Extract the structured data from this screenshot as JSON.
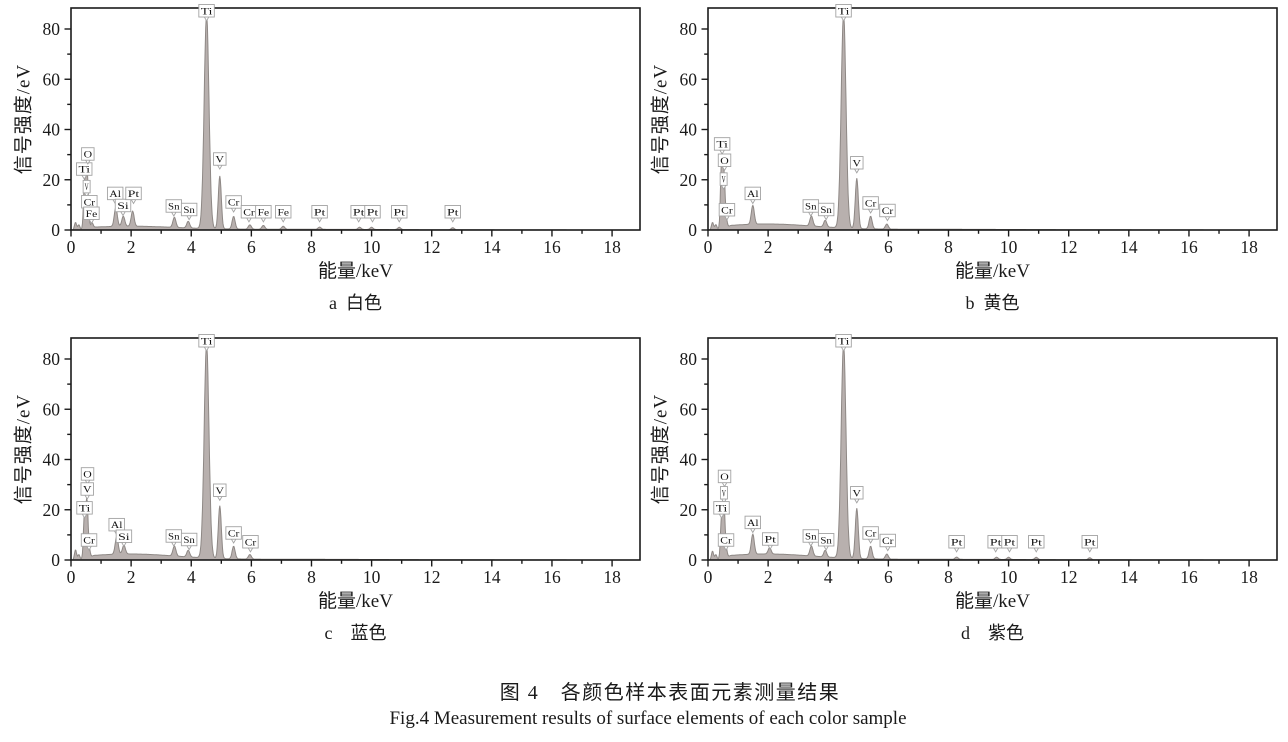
{
  "figure": {
    "caption_zh": "图 4　各颜色样本表面元素测量结果",
    "caption_en": "Fig.4 Measurement results of surface elements of each color sample"
  },
  "axes": {
    "xlabel": "能量/keV",
    "ylabel": "信号强度/eV",
    "x_ticks": [
      0,
      2,
      4,
      6,
      8,
      10,
      12,
      14,
      16,
      18
    ],
    "x_minor_ticks": [
      1,
      3,
      5,
      7,
      9,
      11,
      13,
      15,
      17
    ],
    "y_ticks": [
      0,
      20,
      40,
      60,
      80
    ],
    "y_minor_ticks": [
      10,
      30,
      50,
      70
    ],
    "xlim": [
      0,
      18.93
    ],
    "ylim": [
      0,
      88.4
    ],
    "grid": false
  },
  "colors": {
    "spectrum_fill": "#b8b0ae",
    "spectrum_stroke": "#8e8885",
    "axis": "#1a1a1a",
    "label_box_border": "#a3a3a3",
    "label_box_fill": "#ffffff",
    "label_text": "#141414"
  },
  "chart_data": [
    {
      "id": "a",
      "type": "area",
      "title": "a  白色",
      "sample_color": "白色",
      "xlabel": "能量/keV",
      "ylabel": "信号强度/eV",
      "xlim": [
        0,
        18.93
      ],
      "ylim": [
        0,
        88.4
      ],
      "background_hump_eV": 1.3,
      "peaks": [
        {
          "element": "",
          "energy_keV": 0.15,
          "height_eV": 3
        },
        {
          "element": "",
          "energy_keV": 0.26,
          "height_eV": 2
        },
        {
          "element": "Ti",
          "energy_keV": 0.45,
          "height_eV": 18,
          "label": {
            "e": 0.44,
            "y": 20.5
          }
        },
        {
          "element": "O",
          "energy_keV": 0.53,
          "height_eV": 22,
          "label": {
            "e": 0.56,
            "y": 26.5
          }
        },
        {
          "element": "V",
          "energy_keV": 0.51,
          "height_eV": 0,
          "label": {
            "e": 0.52,
            "y": 13.5
          },
          "tiny": true
        },
        {
          "element": "Cr",
          "energy_keV": 0.58,
          "height_eV": 4,
          "label": {
            "e": 0.61,
            "y": 7.5
          }
        },
        {
          "element": "Fe",
          "energy_keV": 0.7,
          "height_eV": 2,
          "label": {
            "e": 0.68,
            "y": 2.9
          }
        },
        {
          "element": "Al",
          "energy_keV": 1.49,
          "height_eV": 7.5,
          "label": {
            "e": 1.47,
            "y": 10.8
          }
        },
        {
          "element": "Si",
          "energy_keV": 1.74,
          "height_eV": 4,
          "label": {
            "e": 1.73,
            "y": 6.0
          }
        },
        {
          "element": "Pt",
          "energy_keV": 2.05,
          "height_eV": 6,
          "label": {
            "e": 2.08,
            "y": 10.8
          }
        },
        {
          "element": "Sn",
          "energy_keV": 3.44,
          "height_eV": 4,
          "label": {
            "e": 3.42,
            "y": 5.8
          }
        },
        {
          "element": "Sn",
          "energy_keV": 3.9,
          "height_eV": 2.6,
          "label": {
            "e": 3.93,
            "y": 4.4
          }
        },
        {
          "element": "Ti",
          "energy_keV": 4.51,
          "height_eV": 85,
          "label": {
            "e": 4.51,
            "y": 83.5
          }
        },
        {
          "element": "V",
          "energy_keV": 4.95,
          "height_eV": 21,
          "label": {
            "e": 4.95,
            "y": 24.5
          }
        },
        {
          "element": "Cr",
          "energy_keV": 5.41,
          "height_eV": 5,
          "label": {
            "e": 5.41,
            "y": 7.4
          }
        },
        {
          "element": "Cr",
          "energy_keV": 5.95,
          "height_eV": 1.7,
          "label": {
            "e": 5.92,
            "y": 3.5
          }
        },
        {
          "element": "Fe",
          "energy_keV": 6.4,
          "height_eV": 1.5,
          "label": {
            "e": 6.4,
            "y": 3.5
          }
        },
        {
          "element": "Fe",
          "energy_keV": 7.06,
          "height_eV": 1.2,
          "label": {
            "e": 7.06,
            "y": 3.5
          }
        },
        {
          "element": "Pt",
          "energy_keV": 8.27,
          "height_eV": 0.9,
          "label": {
            "e": 8.27,
            "y": 3.5
          }
        },
        {
          "element": "Pt",
          "energy_keV": 9.6,
          "height_eV": 0.9,
          "label": {
            "e": 9.57,
            "y": 3.5
          }
        },
        {
          "element": "Pt",
          "energy_keV": 10.0,
          "height_eV": 0.9,
          "label": {
            "e": 10.03,
            "y": 3.5
          }
        },
        {
          "element": "Pt",
          "energy_keV": 10.92,
          "height_eV": 0.9,
          "label": {
            "e": 10.92,
            "y": 3.5
          }
        },
        {
          "element": "Pt",
          "energy_keV": 12.7,
          "height_eV": 0.8,
          "label": {
            "e": 12.7,
            "y": 3.5
          }
        }
      ]
    },
    {
      "id": "b",
      "type": "area",
      "title": "b  黄色",
      "sample_color": "黄色",
      "xlabel": "能量/keV",
      "ylabel": "信号强度/eV",
      "xlim": [
        0,
        18.93
      ],
      "ylim": [
        0,
        88.4
      ],
      "background_hump_eV": 2.2,
      "peaks": [
        {
          "element": "",
          "energy_keV": 0.15,
          "height_eV": 3
        },
        {
          "element": "",
          "energy_keV": 0.26,
          "height_eV": 2
        },
        {
          "element": "Ti",
          "energy_keV": 0.45,
          "height_eV": 26,
          "label": {
            "e": 0.47,
            "y": 30.5
          }
        },
        {
          "element": "O",
          "energy_keV": 0.53,
          "height_eV": 21,
          "label": {
            "e": 0.55,
            "y": 24.0
          }
        },
        {
          "element": "V",
          "energy_keV": 0.51,
          "height_eV": 0,
          "label": {
            "e": 0.52,
            "y": 16.5
          },
          "tiny": true
        },
        {
          "element": "Cr",
          "energy_keV": 0.6,
          "height_eV": 3.5,
          "label": {
            "e": 0.63,
            "y": 4.3
          }
        },
        {
          "element": "Al",
          "energy_keV": 1.49,
          "height_eV": 7.5,
          "label": {
            "e": 1.49,
            "y": 10.8
          }
        },
        {
          "element": "Sn",
          "energy_keV": 3.44,
          "height_eV": 4,
          "label": {
            "e": 3.42,
            "y": 5.8
          }
        },
        {
          "element": "Sn",
          "energy_keV": 3.9,
          "height_eV": 2.6,
          "label": {
            "e": 3.93,
            "y": 4.4
          }
        },
        {
          "element": "Ti",
          "energy_keV": 4.51,
          "height_eV": 85,
          "label": {
            "e": 4.51,
            "y": 83.5
          }
        },
        {
          "element": "V",
          "energy_keV": 4.95,
          "height_eV": 20,
          "label": {
            "e": 4.95,
            "y": 23.0
          }
        },
        {
          "element": "Cr",
          "energy_keV": 5.41,
          "height_eV": 5,
          "label": {
            "e": 5.41,
            "y": 7.0
          }
        },
        {
          "element": "Cr",
          "energy_keV": 5.95,
          "height_eV": 2,
          "label": {
            "e": 5.97,
            "y": 4.0
          }
        }
      ]
    },
    {
      "id": "c",
      "type": "area",
      "title": "c　蓝色",
      "sample_color": "蓝色",
      "xlabel": "能量/keV",
      "ylabel": "信号强度/eV",
      "xlim": [
        0,
        18.93
      ],
      "ylim": [
        0,
        88.4
      ],
      "background_hump_eV": 2.2,
      "peaks": [
        {
          "element": "",
          "energy_keV": 0.15,
          "height_eV": 4
        },
        {
          "element": "",
          "energy_keV": 0.26,
          "height_eV": 2
        },
        {
          "element": "O",
          "energy_keV": 0.53,
          "height_eV": 22,
          "label": {
            "e": 0.55,
            "y": 30.5
          }
        },
        {
          "element": "V",
          "energy_keV": 0.51,
          "height_eV": 0,
          "label": {
            "e": 0.54,
            "y": 24.5
          }
        },
        {
          "element": "Ti",
          "energy_keV": 0.45,
          "height_eV": 18,
          "label": {
            "e": 0.45,
            "y": 17.0
          }
        },
        {
          "element": "Cr",
          "energy_keV": 0.6,
          "height_eV": 3.5,
          "label": {
            "e": 0.6,
            "y": 4.2
          }
        },
        {
          "element": "Al",
          "energy_keV": 1.52,
          "height_eV": 7,
          "label": {
            "e": 1.52,
            "y": 10.3
          }
        },
        {
          "element": "Si",
          "energy_keV": 1.76,
          "height_eV": 3.5,
          "label": {
            "e": 1.76,
            "y": 5.7
          }
        },
        {
          "element": "Sn",
          "energy_keV": 3.44,
          "height_eV": 4,
          "label": {
            "e": 3.42,
            "y": 5.8
          }
        },
        {
          "element": "Sn",
          "energy_keV": 3.9,
          "height_eV": 2.6,
          "label": {
            "e": 3.93,
            "y": 4.4
          }
        },
        {
          "element": "Ti",
          "energy_keV": 4.51,
          "height_eV": 85,
          "label": {
            "e": 4.51,
            "y": 83.5
          }
        },
        {
          "element": "V",
          "energy_keV": 4.95,
          "height_eV": 21,
          "label": {
            "e": 4.95,
            "y": 24.0
          }
        },
        {
          "element": "Cr",
          "energy_keV": 5.41,
          "height_eV": 5,
          "label": {
            "e": 5.41,
            "y": 7.0
          }
        },
        {
          "element": "Cr",
          "energy_keV": 5.95,
          "height_eV": 1.8,
          "label": {
            "e": 5.97,
            "y": 3.5
          }
        }
      ]
    },
    {
      "id": "d",
      "type": "area",
      "title": "d　紫色",
      "sample_color": "紫色",
      "xlabel": "能量/keV",
      "ylabel": "信号强度/eV",
      "xlim": [
        0,
        18.93
      ],
      "ylim": [
        0,
        88.4
      ],
      "background_hump_eV": 2.2,
      "peaks": [
        {
          "element": "",
          "energy_keV": 0.15,
          "height_eV": 3.5
        },
        {
          "element": "",
          "energy_keV": 0.26,
          "height_eV": 2
        },
        {
          "element": "O",
          "energy_keV": 0.53,
          "height_eV": 20,
          "label": {
            "e": 0.55,
            "y": 29.5
          }
        },
        {
          "element": "V",
          "energy_keV": 0.51,
          "height_eV": 0,
          "label": {
            "e": 0.53,
            "y": 23.0
          },
          "tiny": true
        },
        {
          "element": "Ti",
          "energy_keV": 0.45,
          "height_eV": 16,
          "label": {
            "e": 0.45,
            "y": 17.0
          }
        },
        {
          "element": "Cr",
          "energy_keV": 0.6,
          "height_eV": 3.5,
          "label": {
            "e": 0.6,
            "y": 4.2
          }
        },
        {
          "element": "Al",
          "energy_keV": 1.49,
          "height_eV": 8,
          "label": {
            "e": 1.49,
            "y": 11.2
          }
        },
        {
          "element": "Pt",
          "energy_keV": 2.05,
          "height_eV": 2.5,
          "label": {
            "e": 2.07,
            "y": 4.6
          }
        },
        {
          "element": "Sn",
          "energy_keV": 3.44,
          "height_eV": 4,
          "label": {
            "e": 3.42,
            "y": 5.8
          }
        },
        {
          "element": "Sn",
          "energy_keV": 3.9,
          "height_eV": 2.6,
          "label": {
            "e": 3.93,
            "y": 4.3
          }
        },
        {
          "element": "Ti",
          "energy_keV": 4.51,
          "height_eV": 85,
          "label": {
            "e": 4.51,
            "y": 83.5
          }
        },
        {
          "element": "V",
          "energy_keV": 4.95,
          "height_eV": 20,
          "label": {
            "e": 4.95,
            "y": 23.0
          }
        },
        {
          "element": "Cr",
          "energy_keV": 5.41,
          "height_eV": 5,
          "label": {
            "e": 5.41,
            "y": 7.0
          }
        },
        {
          "element": "Cr",
          "energy_keV": 5.95,
          "height_eV": 2,
          "label": {
            "e": 5.98,
            "y": 4.0
          }
        },
        {
          "element": "Pt",
          "energy_keV": 8.27,
          "height_eV": 0.9,
          "label": {
            "e": 8.27,
            "y": 3.5
          }
        },
        {
          "element": "Pt",
          "energy_keV": 9.6,
          "height_eV": 0.9,
          "label": {
            "e": 9.57,
            "y": 3.5
          }
        },
        {
          "element": "Pt",
          "energy_keV": 10.0,
          "height_eV": 0.9,
          "label": {
            "e": 10.03,
            "y": 3.5
          }
        },
        {
          "element": "Pt",
          "energy_keV": 10.92,
          "height_eV": 0.9,
          "label": {
            "e": 10.92,
            "y": 3.5
          }
        },
        {
          "element": "Pt",
          "energy_keV": 12.7,
          "height_eV": 0.8,
          "label": {
            "e": 12.7,
            "y": 3.5
          }
        }
      ]
    }
  ]
}
